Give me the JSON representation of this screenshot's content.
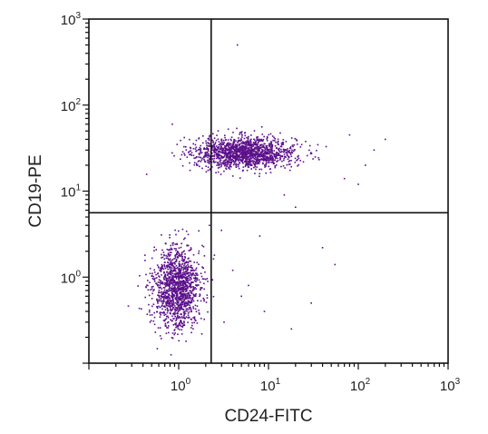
{
  "chart_data": {
    "type": "scatter",
    "xlabel": "CD24-FITC",
    "ylabel": "CD19-PE",
    "xscale": "log",
    "yscale": "log",
    "xlim": [
      0.1,
      1000
    ],
    "ylim": [
      0.1,
      1000
    ],
    "x_tick_labels": [
      {
        "value": 1,
        "base": "10",
        "exp": "0"
      },
      {
        "value": 10,
        "base": "10",
        "exp": "1"
      },
      {
        "value": 100,
        "base": "10",
        "exp": "2"
      },
      {
        "value": 1000,
        "base": "10",
        "exp": "3"
      }
    ],
    "y_tick_labels": [
      {
        "value": 1,
        "base": "10",
        "exp": "0"
      },
      {
        "value": 10,
        "base": "10",
        "exp": "1"
      },
      {
        "value": 100,
        "base": "10",
        "exp": "2"
      },
      {
        "value": 1000,
        "base": "10",
        "exp": "3"
      }
    ],
    "quadrant_gates": {
      "x": 2.3,
      "y": 5.6
    },
    "point_color": "#5b0f8a",
    "populations": [
      {
        "center_x": 5.5,
        "center_y": 28,
        "spread_log_x": 0.28,
        "spread_log_y": 0.09,
        "approx_events": 1500
      },
      {
        "center_x": 0.95,
        "center_y": 0.75,
        "spread_log_x": 0.13,
        "spread_log_y": 0.24,
        "approx_events": 1350
      }
    ],
    "sparse_events": [
      [
        4.5,
        500
      ],
      [
        0.85,
        60
      ],
      [
        1.4,
        28
      ],
      [
        2.2,
        4
      ],
      [
        3.0,
        3.5
      ],
      [
        8,
        3
      ],
      [
        4,
        1.2
      ],
      [
        6,
        0.8
      ],
      [
        9,
        0.4
      ],
      [
        18,
        0.25
      ],
      [
        30,
        0.5
      ],
      [
        40,
        2.2
      ],
      [
        55,
        1.4
      ],
      [
        3.2,
        0.3
      ],
      [
        5,
        0.6
      ],
      [
        2.5,
        1.8
      ],
      [
        70,
        14
      ],
      [
        100,
        12
      ],
      [
        120,
        20
      ],
      [
        20,
        6.5
      ],
      [
        15,
        9
      ],
      [
        150,
        30
      ],
      [
        200,
        40
      ],
      [
        80,
        45
      ]
    ]
  }
}
